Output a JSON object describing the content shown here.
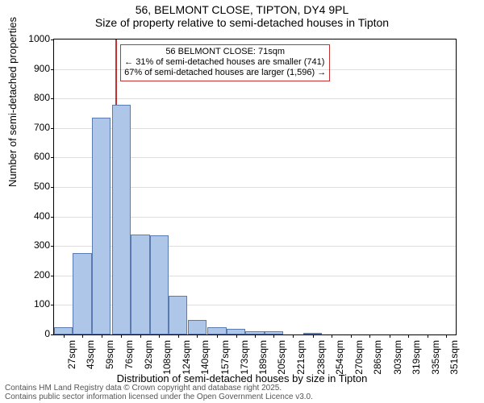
{
  "title_line1": "56, BELMONT CLOSE, TIPTON, DY4 9PL",
  "title_line2": "Size of property relative to semi-detached houses in Tipton",
  "ylabel": "Number of semi-detached properties",
  "xlabel": "Distribution of semi-detached houses by size in Tipton",
  "annotation": {
    "line1": "56 BELMONT CLOSE: 71sqm",
    "line2": "← 31% of semi-detached houses are smaller (741)",
    "line3": "67% of semi-detached houses are larger (1,596) →"
  },
  "footer": {
    "line1": "Contains HM Land Registry data © Crown copyright and database right 2025.",
    "line2": "Contains public sector information licensed under the Open Government Licence v3.0."
  },
  "chart": {
    "type": "histogram",
    "ylim": [
      0,
      1000
    ],
    "ytick_step": 100,
    "yticks": [
      0,
      100,
      200,
      300,
      400,
      500,
      600,
      700,
      800,
      900,
      1000
    ],
    "x_categories": [
      "27sqm",
      "43sqm",
      "59sqm",
      "76sqm",
      "92sqm",
      "108sqm",
      "124sqm",
      "140sqm",
      "157sqm",
      "173sqm",
      "189sqm",
      "205sqm",
      "221sqm",
      "238sqm",
      "254sqm",
      "270sqm",
      "286sqm",
      "303sqm",
      "319sqm",
      "335sqm",
      "351sqm"
    ],
    "bins": [
      {
        "x": 27,
        "count": 25
      },
      {
        "x": 43,
        "count": 275
      },
      {
        "x": 59,
        "count": 735
      },
      {
        "x": 76,
        "count": 780
      },
      {
        "x": 92,
        "count": 340
      },
      {
        "x": 108,
        "count": 335
      },
      {
        "x": 124,
        "count": 130
      },
      {
        "x": 140,
        "count": 50
      },
      {
        "x": 157,
        "count": 25
      },
      {
        "x": 173,
        "count": 20
      },
      {
        "x": 189,
        "count": 10
      },
      {
        "x": 205,
        "count": 12
      },
      {
        "x": 221,
        "count": 0
      },
      {
        "x": 238,
        "count": 5
      },
      {
        "x": 254,
        "count": 0
      },
      {
        "x": 270,
        "count": 0
      },
      {
        "x": 286,
        "count": 0
      },
      {
        "x": 303,
        "count": 0
      },
      {
        "x": 319,
        "count": 0
      },
      {
        "x": 335,
        "count": 0
      },
      {
        "x": 351,
        "count": 0
      }
    ],
    "bin_width_sqm": 16,
    "x_min": 19,
    "x_max": 359,
    "marker_x_sqm": 71,
    "bar_fill": "#aec7e8",
    "bar_stroke": "#5a7bb0",
    "marker_color": "#c53030",
    "grid_color": "#e0e0e0",
    "background": "#ffffff",
    "title_fontsize": 14,
    "label_fontsize": 13,
    "tick_fontsize": 12,
    "ann_fontsize": 11
  }
}
